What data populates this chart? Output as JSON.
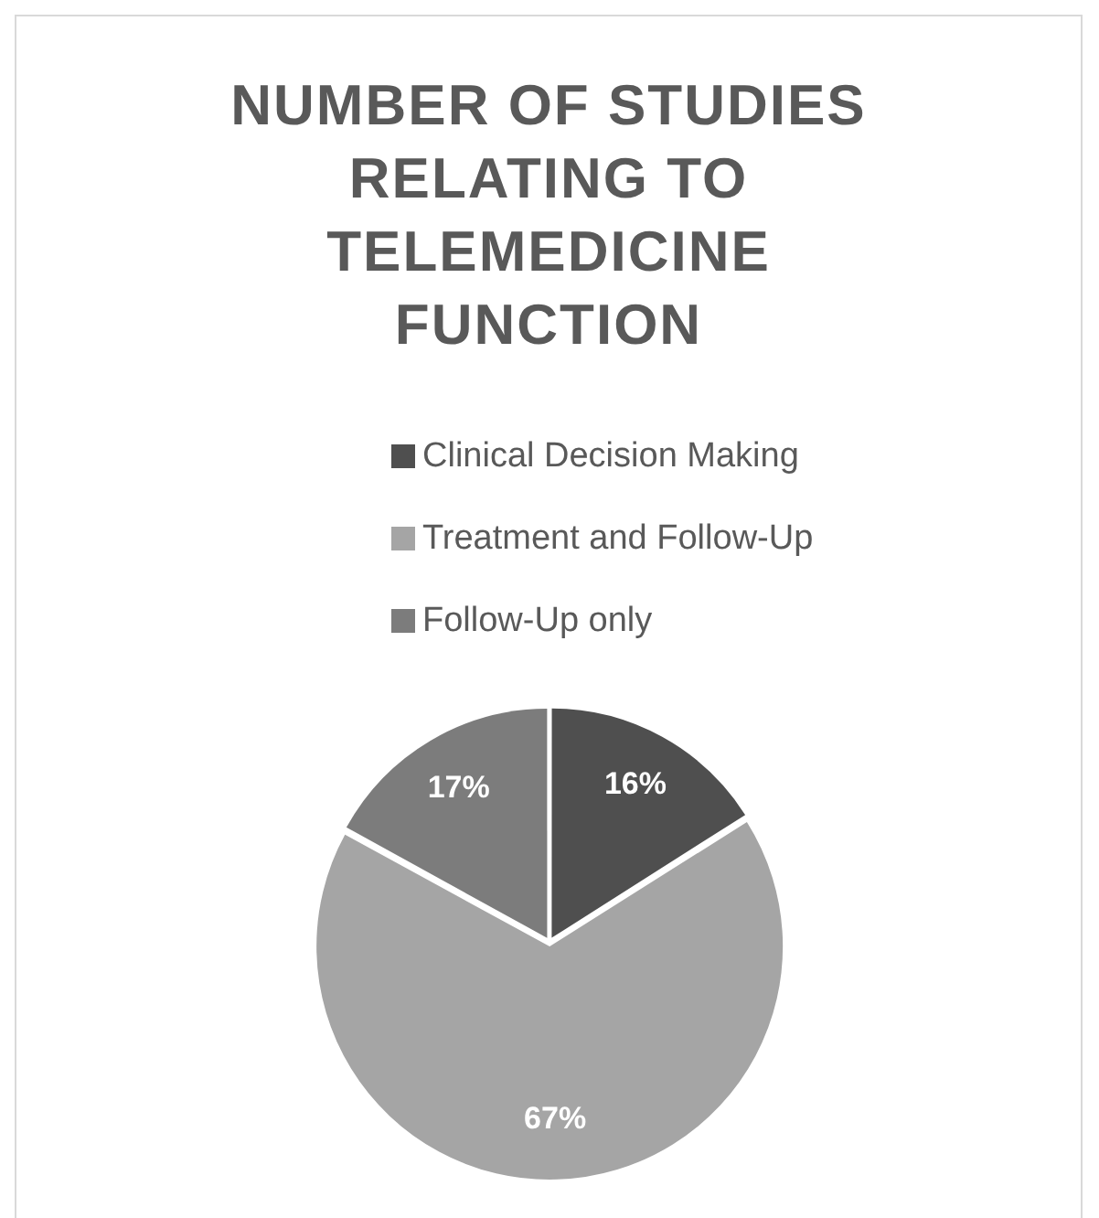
{
  "chart_data": {
    "type": "pie",
    "title": "NUMBER OF STUDIES RELATING TO TELEMEDICINE FUNCTION",
    "categories": [
      "Clinical Decision Making",
      "Treatment and Follow-Up",
      "Follow-Up only"
    ],
    "values": [
      16,
      67,
      17
    ],
    "colors": [
      "#4f4f4f",
      "#a5a5a5",
      "#7c7c7c"
    ],
    "legend": "top",
    "value_labels": [
      "16%",
      "67%",
      "17%"
    ]
  }
}
